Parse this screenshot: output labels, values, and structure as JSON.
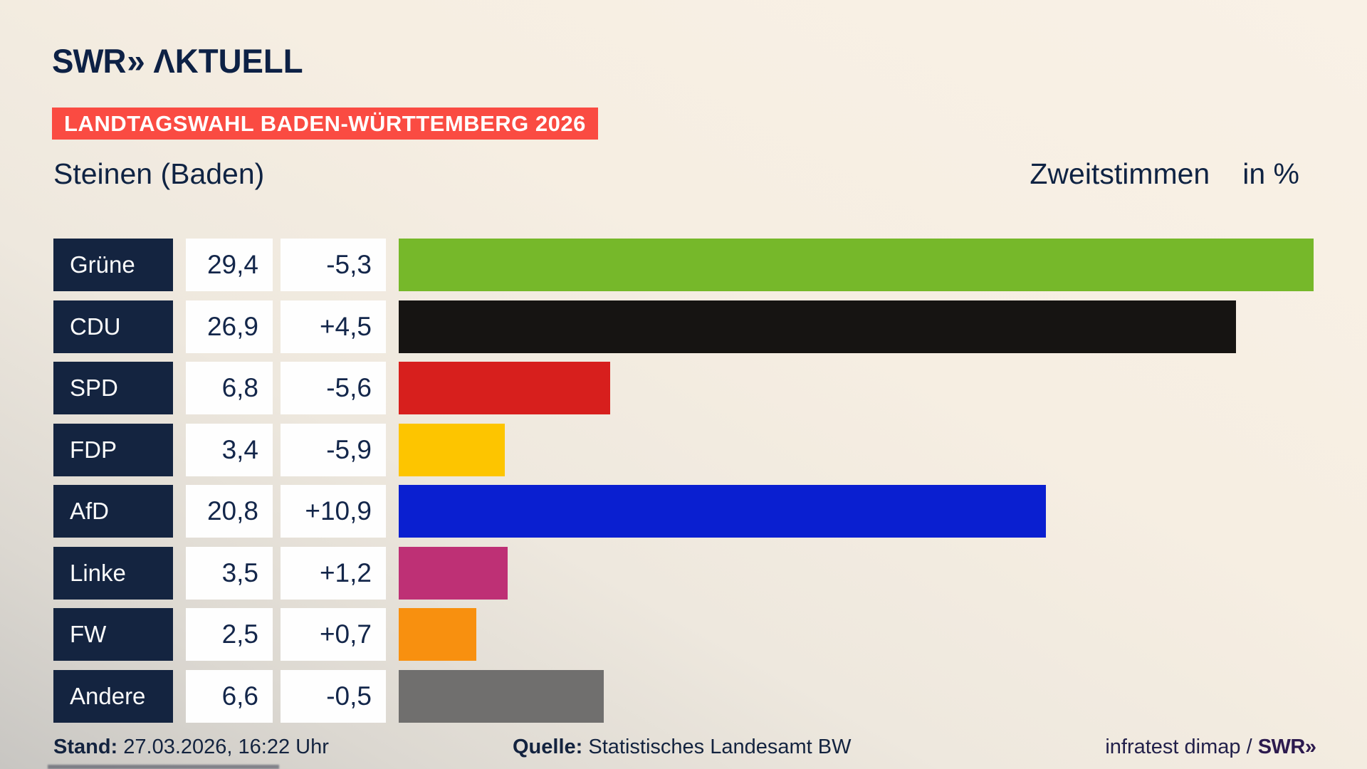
{
  "header": {
    "logo": {
      "swr": "SWR",
      "chevrons": "»",
      "aktuell": "ΛKTUELL"
    },
    "banner": "LANDTAGSWAHL BADEN-WÜRTTEMBERG 2026"
  },
  "titles": {
    "region": "Steinen (Baden)",
    "measure": "Zweitstimmen",
    "unit": "in %"
  },
  "chart_data": {
    "type": "bar",
    "orientation": "horizontal",
    "title": "Steinen (Baden)",
    "subtitle": "Zweitstimmen in %",
    "unit": "%",
    "xlim": [
      0,
      30
    ],
    "grid": false,
    "parties": [
      {
        "name": "Grüne",
        "value": 29.4,
        "value_label": "29,4",
        "change": -5.3,
        "change_label": "-5,3",
        "color": "#76b82a"
      },
      {
        "name": "CDU",
        "value": 26.9,
        "value_label": "26,9",
        "change": 4.5,
        "change_label": "+4,5",
        "color": "#161412"
      },
      {
        "name": "SPD",
        "value": 6.8,
        "value_label": "6,8",
        "change": -5.6,
        "change_label": "-5,6",
        "color": "#d71f1d"
      },
      {
        "name": "FDP",
        "value": 3.4,
        "value_label": "3,4",
        "change": -5.9,
        "change_label": "-5,9",
        "color": "#fdc500"
      },
      {
        "name": "AfD",
        "value": 20.8,
        "value_label": "20,8",
        "change": 10.9,
        "change_label": "+10,9",
        "color": "#0a1fd0"
      },
      {
        "name": "Linke",
        "value": 3.5,
        "value_label": "3,5",
        "change": 1.2,
        "change_label": "+1,2",
        "color": "#be3075"
      },
      {
        "name": "FW",
        "value": 2.5,
        "value_label": "2,5",
        "change": 0.7,
        "change_label": "+0,7",
        "color": "#f8900f"
      },
      {
        "name": "Andere",
        "value": 6.6,
        "value_label": "6,6",
        "change": -0.5,
        "change_label": "-0,5",
        "color": "#706f6e"
      }
    ]
  },
  "footer": {
    "stand_label": "Stand:",
    "stand_value": " 27.03.2026, 16:22 Uhr",
    "source_label": "Quelle:",
    "source_value": " Statistisches Landesamt BW",
    "credit_text": "infratest dimap / ",
    "credit_brand": "SWR",
    "credit_brand_chevrons": "»"
  },
  "colors": {
    "banner_red": "#fa4b42",
    "label_box_navy": "#142440",
    "text_navy": "#13233f",
    "background_beige": "#f7efe4",
    "background_gray": "#c8c6c2",
    "credit_brand_purple": "#2c1a4e"
  }
}
